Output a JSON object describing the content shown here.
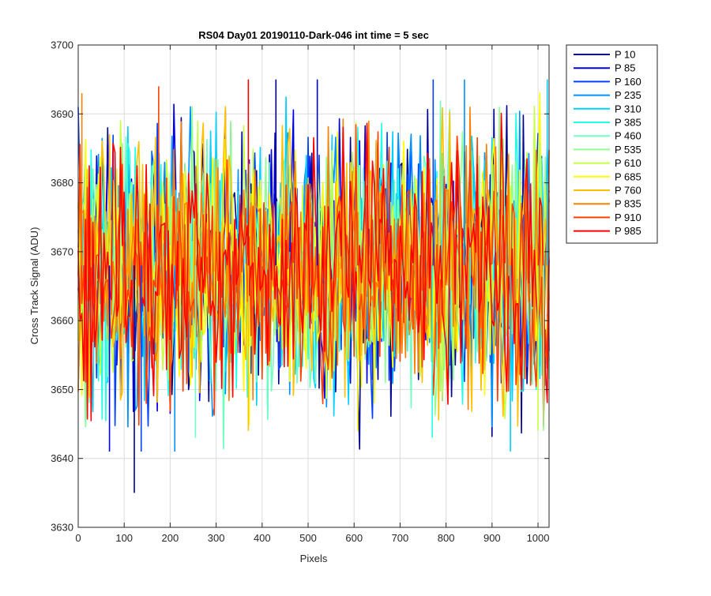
{
  "chart_data": {
    "type": "line",
    "title": "RS04 Day01 20190110-Dark-046 int time = 5 sec",
    "xlabel": "Pixels",
    "ylabel": "Cross Track Signal (ADU)",
    "xlim": [
      0,
      1024
    ],
    "ylim": [
      3630,
      3700
    ],
    "xticks": [
      0,
      100,
      200,
      300,
      400,
      500,
      600,
      700,
      800,
      900,
      1000
    ],
    "yticks": [
      3630,
      3640,
      3650,
      3660,
      3670,
      3680,
      3690,
      3700
    ],
    "grid": true,
    "legend_position": "outside-right-top",
    "noise_mean": 3668,
    "noise_band": [
      3655,
      3682
    ],
    "series": [
      {
        "name": "P 10",
        "color": "#00008f"
      },
      {
        "name": "P 85",
        "color": "#0000e6"
      },
      {
        "name": "P 160",
        "color": "#0040ff"
      },
      {
        "name": "P 235",
        "color": "#0090ff"
      },
      {
        "name": "P 310",
        "color": "#00d0ff"
      },
      {
        "name": "P 385",
        "color": "#20ffe8"
      },
      {
        "name": "P 460",
        "color": "#70ffc0"
      },
      {
        "name": "P 535",
        "color": "#90ff90"
      },
      {
        "name": "P 610",
        "color": "#c8ff40"
      },
      {
        "name": "P 685",
        "color": "#ffff00"
      },
      {
        "name": "P 760",
        "color": "#ffc000"
      },
      {
        "name": "P 835",
        "color": "#ff8000"
      },
      {
        "name": "P 910",
        "color": "#ff4000"
      },
      {
        "name": "P 985",
        "color": "#ff0000"
      }
    ],
    "notable_spikes": [
      {
        "x": 122,
        "y": 3635
      },
      {
        "x": 68,
        "y": 3641
      },
      {
        "x": 137,
        "y": 3641
      },
      {
        "x": 210,
        "y": 3641
      },
      {
        "x": 940,
        "y": 3641
      },
      {
        "x": 770,
        "y": 3643
      },
      {
        "x": 255,
        "y": 3643
      },
      {
        "x": 1012,
        "y": 3644
      },
      {
        "x": 1000,
        "y": 3644
      },
      {
        "x": 608,
        "y": 3644
      },
      {
        "x": 370,
        "y": 3644
      },
      {
        "x": 8,
        "y": 3693
      },
      {
        "x": 175,
        "y": 3694
      },
      {
        "x": 370,
        "y": 3695
      },
      {
        "x": 430,
        "y": 3695
      },
      {
        "x": 520,
        "y": 3695
      },
      {
        "x": 772,
        "y": 3695
      },
      {
        "x": 840,
        "y": 3695
      },
      {
        "x": 1020,
        "y": 3695
      }
    ]
  }
}
